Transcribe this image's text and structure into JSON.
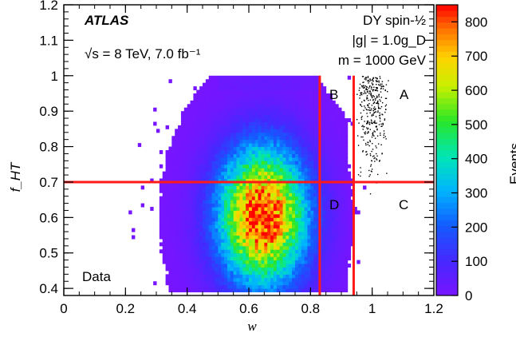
{
  "chart_data": {
    "type": "heatmap",
    "description_text": {
      "experiment": "ATLAS",
      "energy_lumi": "√s = 8 TeV,  7.0 fb⁻¹",
      "model_line1": "DY spin-½",
      "model_line2": "|g| = 1.0g_D",
      "model_line3": "m = 1000 GeV",
      "sample_label": "Data"
    },
    "xlabel": "w",
    "ylabel": "f_HT",
    "colorbar_label": "Events",
    "xlim": [
      0,
      1.2
    ],
    "ylim": [
      0.38,
      1.2
    ],
    "x_ticks": [
      "0",
      "0.2",
      "0.4",
      "0.6",
      "0.8",
      "1",
      "1.2"
    ],
    "y_ticks": [
      "0.4",
      "0.5",
      "0.6",
      "0.7",
      "0.8",
      "0.9",
      "1",
      "1.1",
      "1.2"
    ],
    "z_range": [
      0,
      850
    ],
    "z_ticks": [
      "0",
      "100",
      "200",
      "300",
      "400",
      "500",
      "600",
      "700",
      "800"
    ],
    "distribution_peak": {
      "w": 0.64,
      "f_HT": 0.6,
      "events": 850
    },
    "cut_lines": {
      "w": [
        0.83,
        0.94
      ],
      "f_HT": 0.7
    },
    "regions": [
      "A",
      "B",
      "C",
      "D"
    ],
    "signal_points": {
      "w_center": 1.0,
      "f_HT_range": [
        0.62,
        1.0
      ]
    },
    "colors": {
      "cut_line": "#ff1a1a",
      "signal_marker": "#000000"
    }
  }
}
